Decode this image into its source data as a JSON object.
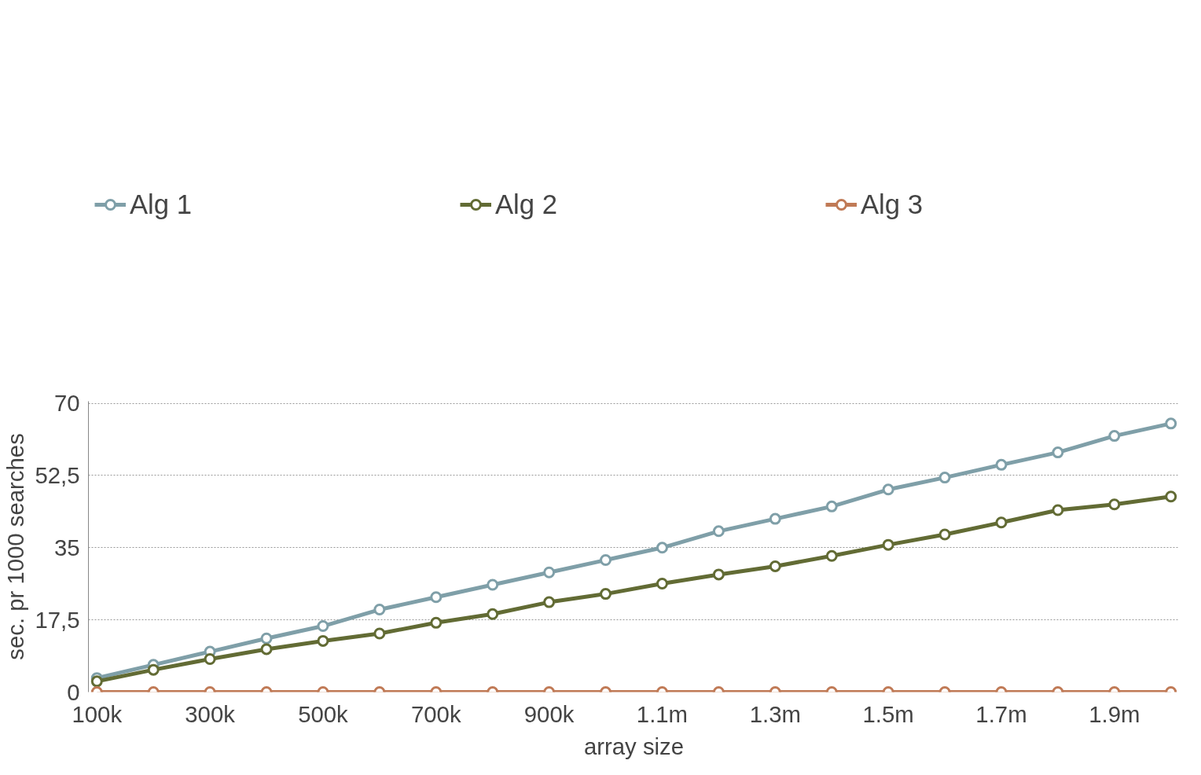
{
  "chart_data": {
    "type": "line",
    "xlabel": "array size",
    "ylabel": "sec. pr 1000 searches",
    "categories": [
      "100k",
      null,
      "300k",
      null,
      "500k",
      null,
      "700k",
      null,
      "900k",
      null,
      "1.1m",
      null,
      "1.3m",
      null,
      "1.5m",
      null,
      "1.7m",
      null,
      "1.9m",
      null
    ],
    "series": [
      {
        "name": "Alg 1",
        "color": "#7f9fa8",
        "values": [
          3.4,
          6.6,
          9.8,
          13.0,
          16.0,
          20.0,
          23.0,
          26.0,
          29.0,
          32.0,
          35.0,
          39.0,
          42.0,
          45.0,
          49.1,
          52.0,
          55.1,
          58.1,
          62.1,
          65.1
        ]
      },
      {
        "name": "Alg 2",
        "color": "#626b34",
        "values": [
          2.6,
          5.4,
          8.0,
          10.4,
          12.4,
          14.2,
          16.8,
          18.9,
          21.8,
          23.8,
          26.3,
          28.5,
          30.5,
          33.0,
          35.7,
          38.2,
          41.1,
          44.1,
          45.5,
          47.4
        ]
      },
      {
        "name": "Alg 3",
        "color": "#c07a56",
        "values": [
          0,
          0,
          0,
          0,
          0,
          0,
          0,
          0,
          0,
          0,
          0,
          0,
          0,
          0,
          0,
          0,
          0,
          0,
          0,
          0
        ]
      }
    ],
    "ylim": [
      0,
      70
    ],
    "yticks": [
      0,
      {
        "value": 17.5,
        "label": "17,5"
      },
      35,
      {
        "value": 52.5,
        "label": "52,5"
      },
      70
    ],
    "grid": "y",
    "legend": "top",
    "marker": "circle",
    "line_style": "solid"
  }
}
